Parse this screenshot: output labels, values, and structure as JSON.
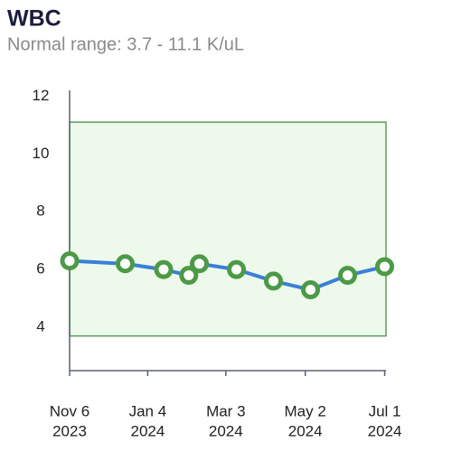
{
  "chart_data": {
    "type": "line",
    "title": "WBC",
    "subtitle": "Normal range: 3.7 - 11.1 K/uL",
    "x": [
      "2023-11-06",
      "2023-12-18",
      "2024-01-16",
      "2024-02-04",
      "2024-02-12",
      "2024-03-11",
      "2024-04-08",
      "2024-05-06",
      "2024-06-03",
      "2024-07-01"
    ],
    "series": [
      {
        "name": "WBC",
        "color": "#3a7fd9",
        "marker_color": "#4c9a47",
        "values": [
          6.3,
          6.2,
          6.0,
          5.8,
          6.2,
          6.0,
          5.6,
          5.3,
          5.8,
          6.1
        ]
      }
    ],
    "normal_range": [
      3.7,
      11.1
    ],
    "normal_range_color": "#edf9ea",
    "xlim": [
      "2023-11-06",
      "2024-07-02"
    ],
    "xticks": [
      {
        "value": "2023-11-06",
        "label": [
          "Nov 6",
          "2023"
        ]
      },
      {
        "value": "2024-01-04",
        "label": [
          "Jan 4",
          "2024"
        ]
      },
      {
        "value": "2024-03-03",
        "label": [
          "Mar 3",
          "2024"
        ]
      },
      {
        "value": "2024-05-02",
        "label": [
          "May 2",
          "2024"
        ]
      },
      {
        "value": "2024-07-01",
        "label": [
          "Jul 1",
          "2024"
        ]
      }
    ],
    "ylim": [
      2.5,
      12.2
    ],
    "yticks": [
      4,
      6,
      8,
      10,
      12
    ],
    "grid": false
  }
}
